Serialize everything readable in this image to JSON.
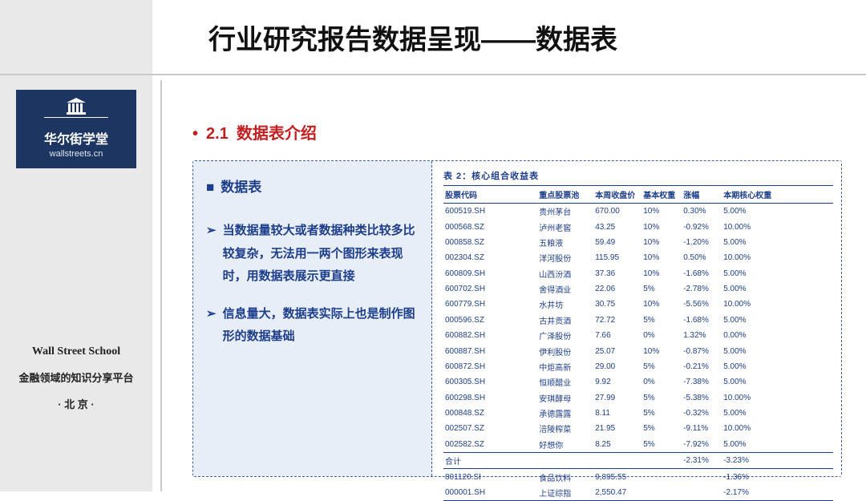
{
  "title": "行业研究报告数据呈现——数据表",
  "section": {
    "num": "2.1",
    "label": "数据表介绍"
  },
  "sidebar": {
    "logo_zh": "华尔街学堂",
    "logo_en": "wallstreets.cn",
    "bottom_en": "Wall Street School",
    "bottom_tagline": "金融领域的知识分享平台",
    "bottom_city": "· 北 京 ·"
  },
  "left_panel": {
    "heading": "数据表",
    "items": [
      "当数据量较大或者数据种类比较多比较复杂，无法用一两个图形来表现时，用数据表展示更直接",
      "信息量大，数据表实际上也是制作图形的数据基础"
    ]
  },
  "table": {
    "caption": "表 2：核心组合收益表",
    "columns": [
      "股票代码",
      "重点股票池",
      "本周收盘价",
      "基本权重",
      "涨幅",
      "本期核心权重"
    ],
    "rows": [
      [
        "600519.SH",
        "贵州茅台",
        "670.00",
        "10%",
        "0.30%",
        "5.00%"
      ],
      [
        "000568.SZ",
        "泸州老窖",
        "43.25",
        "10%",
        "-0.92%",
        "10.00%"
      ],
      [
        "000858.SZ",
        "五粮液",
        "59.49",
        "10%",
        "-1.20%",
        "5.00%"
      ],
      [
        "002304.SZ",
        "洋河股份",
        "115.95",
        "10%",
        "0.50%",
        "10.00%"
      ],
      [
        "600809.SH",
        "山西汾酒",
        "37.36",
        "10%",
        "-1.68%",
        "5.00%"
      ],
      [
        "600702.SH",
        "舍得酒业",
        "22.06",
        "5%",
        "-2.78%",
        "5.00%"
      ],
      [
        "600779.SH",
        "水井坊",
        "30.75",
        "10%",
        "-5.56%",
        "10.00%"
      ],
      [
        "000596.SZ",
        "古井贡酒",
        "72.72",
        "5%",
        "-1.68%",
        "5.00%"
      ],
      [
        "600882.SH",
        "广泽股份",
        "7.66",
        "0%",
        "1.32%",
        "0.00%"
      ],
      [
        "600887.SH",
        "伊利股份",
        "25.07",
        "10%",
        "-0.87%",
        "5.00%"
      ],
      [
        "600872.SH",
        "中炬高新",
        "29.00",
        "5%",
        "-0.21%",
        "5.00%"
      ],
      [
        "600305.SH",
        "恒顺醋业",
        "9.92",
        "0%",
        "-7.38%",
        "5.00%"
      ],
      [
        "600298.SH",
        "安琪酵母",
        "27.99",
        "5%",
        "-5.38%",
        "10.00%"
      ],
      [
        "000848.SZ",
        "承德露露",
        "8.11",
        "5%",
        "-0.32%",
        "5.00%"
      ],
      [
        "002507.SZ",
        "涪陵榨菜",
        "21.95",
        "5%",
        "-9.11%",
        "10.00%"
      ],
      [
        "002582.SZ",
        "好想你",
        "8.25",
        "5%",
        "-7.92%",
        "5.00%"
      ]
    ],
    "total_row": [
      "合计",
      "",
      "",
      "",
      "-2.31%",
      "-3.23%"
    ],
    "footer_rows": [
      [
        "801120.SI",
        "食品饮料",
        "9,895.55",
        "",
        "",
        "-1.36%"
      ],
      [
        "000001.SH",
        "上证综指",
        "2,550.47",
        "",
        "",
        "-2.17%"
      ]
    ]
  },
  "colors": {
    "accent": "#1d3e8a",
    "red": "#c02020",
    "panel_bg": "#e8eef8",
    "sidebar_bg": "#e9e9e9",
    "logo_bg": "#1d3661"
  }
}
